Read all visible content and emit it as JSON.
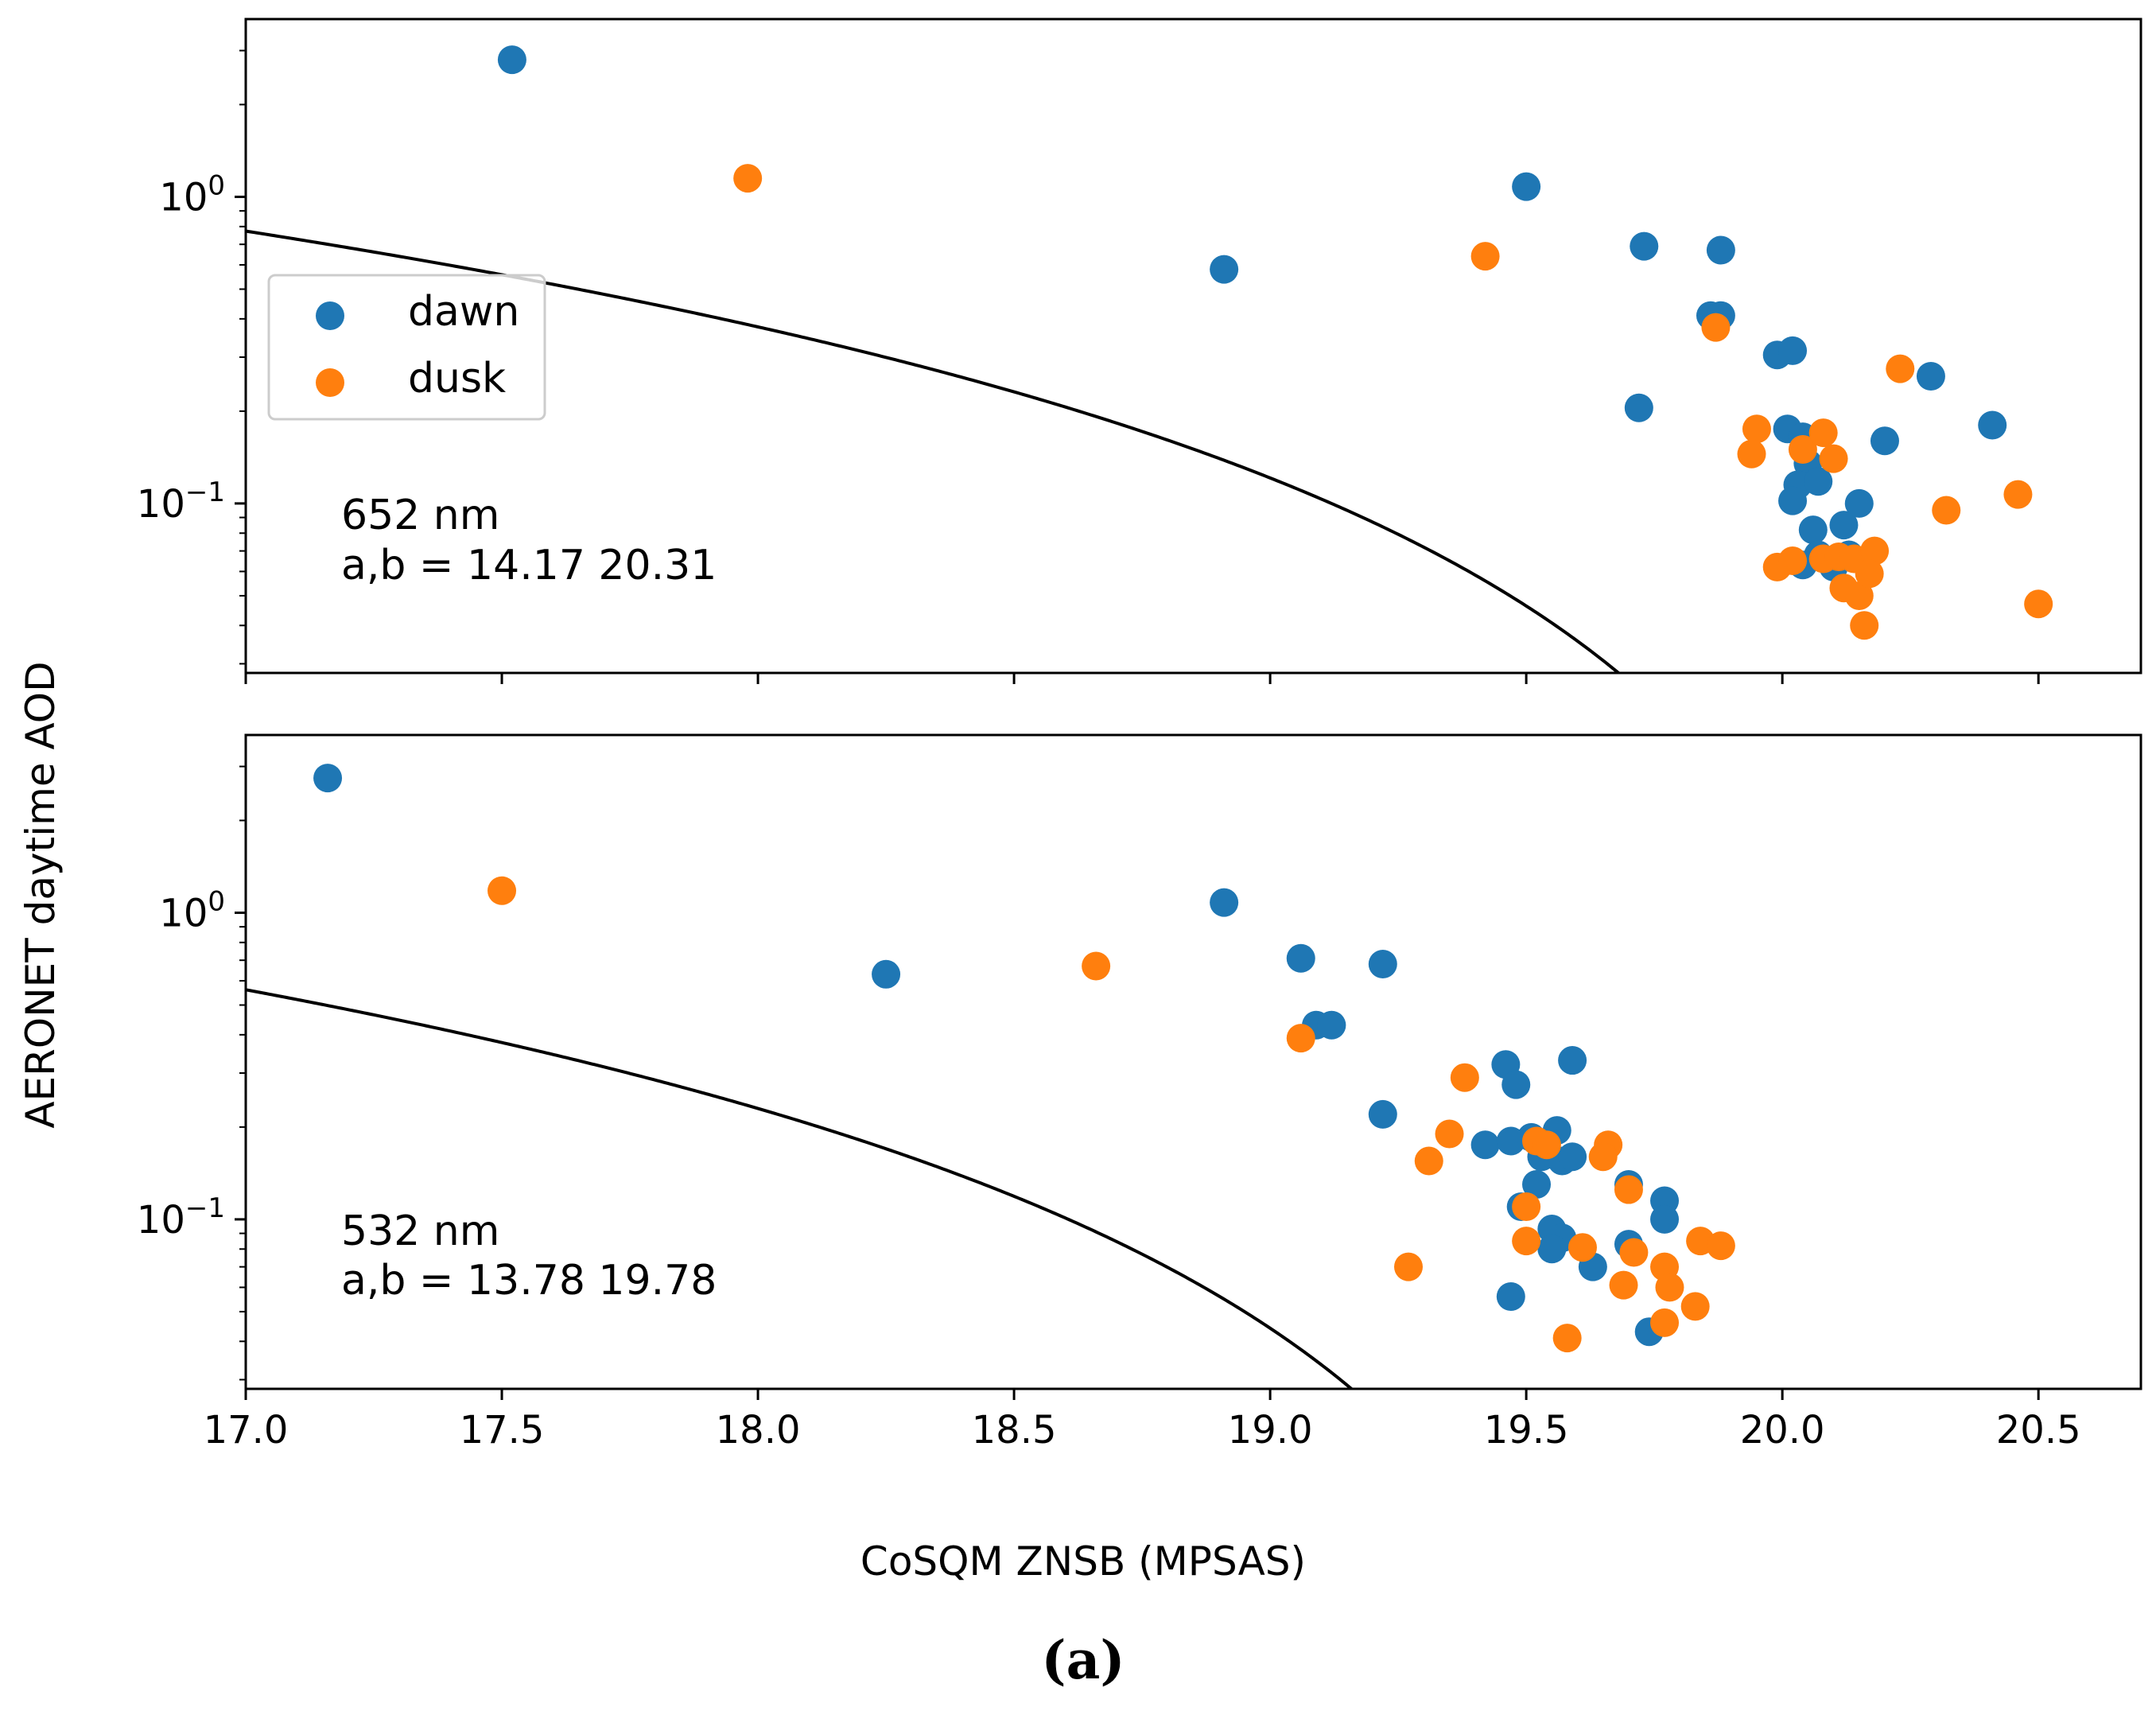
{
  "caption": "(a)",
  "ylabel": "AERONET daytime AOD",
  "xlabel": "CoSQM ZNSB (MPSAS)",
  "colors": {
    "dawn": "#1f77b4",
    "dusk": "#ff7f0e",
    "fit": "#000000"
  },
  "chart_data": [
    {
      "type": "scatter",
      "yscale": "log",
      "xlim": [
        17.0,
        20.7
      ],
      "ylim": [
        0.028,
        3.8
      ],
      "wavelength_label": "652 nm",
      "fit_label": "a,b = 14.17 20.31",
      "fit": {
        "form": "y = (b - x)^2 / a",
        "a": 14.17,
        "b": 20.31
      },
      "yticks": [
        {
          "value": 1,
          "base": "10",
          "exp": "0"
        },
        {
          "value": 0.1,
          "base": "10",
          "exp": "−1"
        }
      ],
      "legend": {
        "position": "upper-left",
        "entries": [
          "dawn",
          "dusk"
        ]
      },
      "series": [
        {
          "name": "dawn",
          "points": [
            [
              17.52,
              2.8
            ],
            [
              18.91,
              0.58
            ],
            [
              19.5,
              1.08
            ],
            [
              19.73,
              0.69
            ],
            [
              19.88,
              0.67
            ],
            [
              19.72,
              0.205
            ],
            [
              19.86,
              0.41
            ],
            [
              19.88,
              0.41
            ],
            [
              19.99,
              0.305
            ],
            [
              20.02,
              0.315
            ],
            [
              20.01,
              0.175
            ],
            [
              20.04,
              0.165
            ],
            [
              20.05,
              0.135
            ],
            [
              20.03,
              0.115
            ],
            [
              20.07,
              0.118
            ],
            [
              20.02,
              0.102
            ],
            [
              20.06,
              0.082
            ],
            [
              20.12,
              0.085
            ],
            [
              20.15,
              0.1
            ],
            [
              20.07,
              0.068
            ],
            [
              20.04,
              0.063
            ],
            [
              20.1,
              0.062
            ],
            [
              20.13,
              0.068
            ],
            [
              20.2,
              0.16
            ],
            [
              20.29,
              0.26
            ],
            [
              20.41,
              0.18
            ]
          ]
        },
        {
          "name": "dusk",
          "points": [
            [
              17.98,
              1.15
            ],
            [
              19.42,
              0.64
            ],
            [
              19.87,
              0.375
            ],
            [
              19.95,
              0.175
            ],
            [
              19.94,
              0.145
            ],
            [
              20.04,
              0.15
            ],
            [
              20.08,
              0.17
            ],
            [
              20.1,
              0.14
            ],
            [
              20.23,
              0.275
            ],
            [
              19.99,
              0.062
            ],
            [
              20.02,
              0.065
            ],
            [
              20.08,
              0.066
            ],
            [
              20.11,
              0.067
            ],
            [
              20.14,
              0.066
            ],
            [
              20.18,
              0.07
            ],
            [
              20.12,
              0.053
            ],
            [
              20.15,
              0.05
            ],
            [
              20.17,
              0.059
            ],
            [
              20.16,
              0.04
            ],
            [
              20.32,
              0.095
            ],
            [
              20.46,
              0.107
            ],
            [
              20.5,
              0.047
            ]
          ]
        }
      ]
    },
    {
      "type": "scatter",
      "yscale": "log",
      "xlim": [
        17.0,
        20.7
      ],
      "ylim": [
        0.028,
        3.8
      ],
      "wavelength_label": "532 nm",
      "fit_label": "a,b = 13.78 19.78",
      "fit": {
        "form": "y = (b - x)^2 / a",
        "a": 13.78,
        "b": 19.78
      },
      "yticks": [
        {
          "value": 1,
          "base": "10",
          "exp": "0"
        },
        {
          "value": 0.1,
          "base": "10",
          "exp": "−1"
        }
      ],
      "xticks": [
        "17.0",
        "17.5",
        "18.0",
        "18.5",
        "19.0",
        "19.5",
        "20.0",
        "20.5"
      ],
      "series": [
        {
          "name": "dawn",
          "points": [
            [
              17.16,
              2.75
            ],
            [
              18.25,
              0.63
            ],
            [
              18.91,
              1.08
            ],
            [
              19.06,
              0.71
            ],
            [
              19.22,
              0.68
            ],
            [
              19.09,
              0.43
            ],
            [
              19.12,
              0.43
            ],
            [
              19.22,
              0.22
            ],
            [
              19.46,
              0.32
            ],
            [
              19.48,
              0.275
            ],
            [
              19.59,
              0.33
            ],
            [
              19.42,
              0.175
            ],
            [
              19.47,
              0.18
            ],
            [
              19.51,
              0.185
            ],
            [
              19.56,
              0.195
            ],
            [
              19.53,
              0.16
            ],
            [
              19.57,
              0.155
            ],
            [
              19.59,
              0.16
            ],
            [
              19.52,
              0.13
            ],
            [
              19.49,
              0.11
            ],
            [
              19.55,
              0.093
            ],
            [
              19.57,
              0.087
            ],
            [
              19.55,
              0.08
            ],
            [
              19.63,
              0.07
            ],
            [
              19.47,
              0.056
            ],
            [
              19.7,
              0.13
            ],
            [
              19.7,
              0.083
            ],
            [
              19.77,
              0.115
            ],
            [
              19.77,
              0.1
            ],
            [
              19.74,
              0.043
            ]
          ]
        },
        {
          "name": "dusk",
          "points": [
            [
              17.5,
              1.18
            ],
            [
              18.66,
              0.67
            ],
            [
              19.06,
              0.39
            ],
            [
              19.38,
              0.29
            ],
            [
              19.35,
              0.19
            ],
            [
              19.31,
              0.155
            ],
            [
              19.27,
              0.07
            ],
            [
              19.52,
              0.18
            ],
            [
              19.54,
              0.175
            ],
            [
              19.66,
              0.175
            ],
            [
              19.65,
              0.16
            ],
            [
              19.7,
              0.125
            ],
            [
              19.5,
              0.11
            ],
            [
              19.5,
              0.085
            ],
            [
              19.61,
              0.081
            ],
            [
              19.71,
              0.078
            ],
            [
              19.69,
              0.061
            ],
            [
              19.77,
              0.07
            ],
            [
              19.78,
              0.06
            ],
            [
              19.77,
              0.046
            ],
            [
              19.83,
              0.052
            ],
            [
              19.84,
              0.085
            ],
            [
              19.88,
              0.082
            ],
            [
              19.58,
              0.041
            ]
          ]
        }
      ]
    }
  ]
}
